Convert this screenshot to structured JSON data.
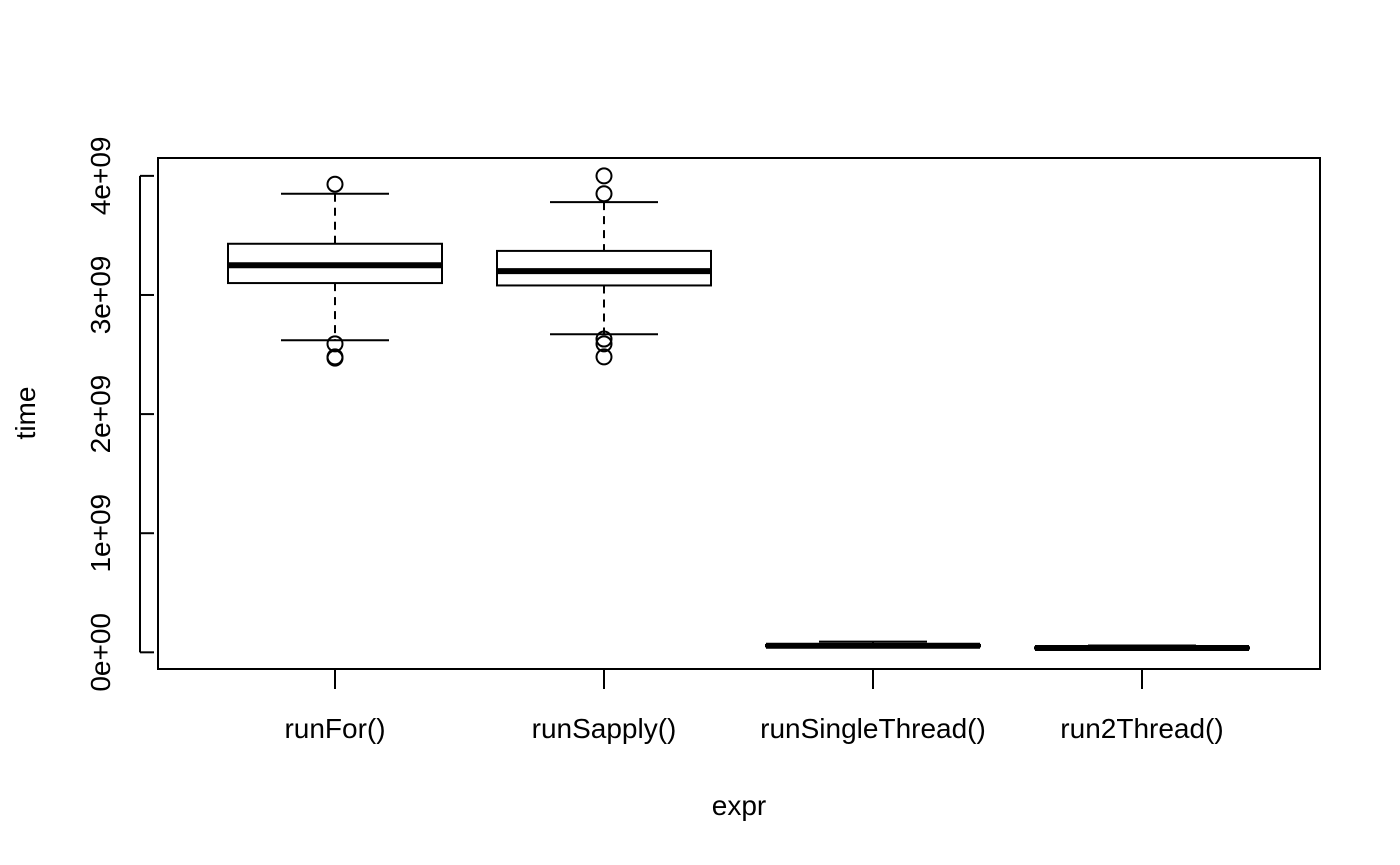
{
  "chart_data": {
    "type": "boxplot",
    "title": "",
    "xlabel": "expr",
    "ylabel": "time",
    "ylim": [
      -140000000,
      4150000000
    ],
    "y_ticks": [
      0,
      1000000000,
      2000000000,
      3000000000,
      4000000000
    ],
    "y_tick_labels": [
      "0e+00",
      "1e+09",
      "2e+09",
      "3e+09",
      "4e+09"
    ],
    "grid": false,
    "legend": "none",
    "categories": [
      "runFor()",
      "runSapply()",
      "runSingleThread()",
      "run2Thread()"
    ],
    "boxes": [
      {
        "category": "runFor()",
        "whisker_low": 2620000000,
        "q1": 3100000000,
        "median": 3250000000,
        "q3": 3430000000,
        "whisker_high": 3850000000,
        "outliers": [
          3930000000,
          2590000000,
          2480000000,
          2470000000
        ]
      },
      {
        "category": "runSapply()",
        "whisker_low": 2670000000,
        "q1": 3080000000,
        "median": 3200000000,
        "q3": 3370000000,
        "whisker_high": 3780000000,
        "outliers": [
          4000000000,
          3850000000,
          2630000000,
          2590000000,
          2480000000
        ]
      },
      {
        "category": "runSingleThread()",
        "whisker_low": 45000000,
        "q1": 50000000,
        "median": 55000000,
        "q3": 62000000,
        "whisker_high": 90000000,
        "outliers": []
      },
      {
        "category": "run2Thread()",
        "whisker_low": 28000000,
        "q1": 32000000,
        "median": 36000000,
        "q3": 42000000,
        "whisker_high": 57000000,
        "outliers": []
      }
    ]
  }
}
